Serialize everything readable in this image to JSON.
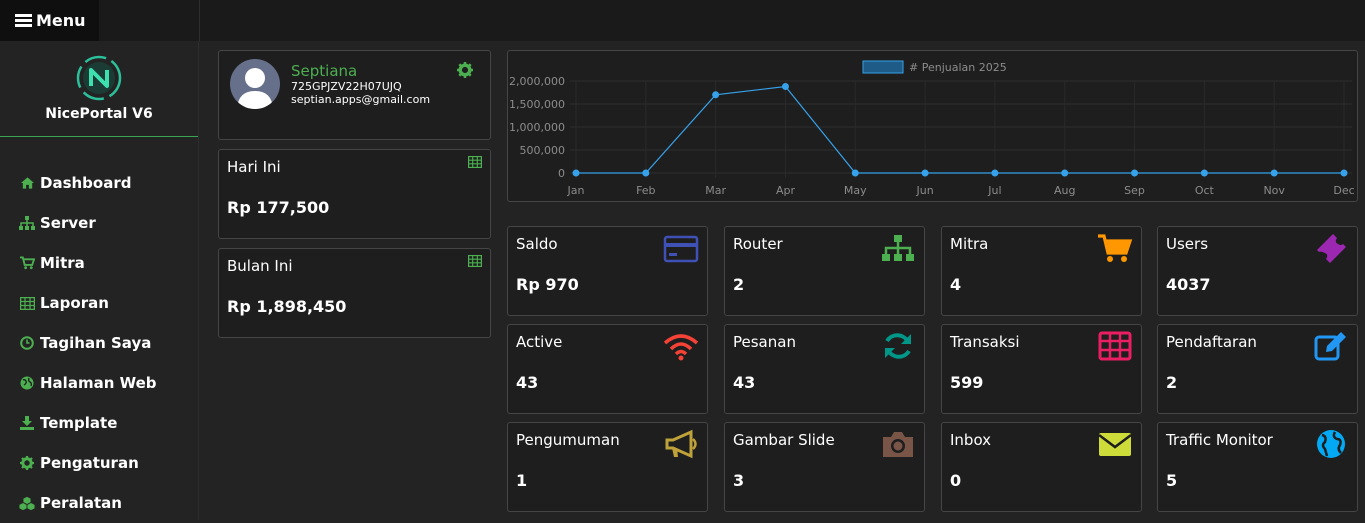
{
  "menu": {
    "label": "Menu"
  },
  "brand": {
    "name": "NicePortal V6"
  },
  "nav": {
    "items": [
      {
        "label": "Dashboard",
        "icon": "home-icon"
      },
      {
        "label": "Server",
        "icon": "sitemap-icon"
      },
      {
        "label": "Mitra",
        "icon": "cart-icon"
      },
      {
        "label": "Laporan",
        "icon": "table-icon"
      },
      {
        "label": "Tagihan Saya",
        "icon": "clock-icon"
      },
      {
        "label": "Halaman Web",
        "icon": "globe-icon"
      },
      {
        "label": "Template",
        "icon": "download-icon"
      },
      {
        "label": "Pengaturan",
        "icon": "gear-icon"
      },
      {
        "label": "Peralatan",
        "icon": "cubes-icon"
      }
    ]
  },
  "profile": {
    "name": "Septiana",
    "code": "725GPJZV22H07UJQ",
    "email": "septian.apps@gmail.com"
  },
  "today": {
    "title": "Hari Ini",
    "value": "Rp 177,500"
  },
  "month": {
    "title": "Bulan Ini",
    "value": "Rp 1,898,450"
  },
  "chart_data": {
    "type": "line",
    "series": [
      {
        "name": "# Penjualan 2025",
        "values": [
          0,
          0,
          1700000,
          1880000,
          0,
          0,
          0,
          0,
          0,
          0,
          0,
          0
        ]
      }
    ],
    "categories": [
      "Jan",
      "Feb",
      "Mar",
      "Apr",
      "May",
      "Jun",
      "Jul",
      "Aug",
      "Sep",
      "Oct",
      "Nov",
      "Dec"
    ],
    "ylim": [
      0,
      2000000
    ],
    "yticks": [
      "2,000,000",
      "1,500,000",
      "1,000,000",
      "500,000",
      "0"
    ],
    "legend": "top-center",
    "color": "#36a2eb"
  },
  "tiles": [
    {
      "title": "Saldo",
      "value": "Rp 970",
      "icon": "credit-card-icon",
      "color": "#3f51b5"
    },
    {
      "title": "Router",
      "value": "2",
      "icon": "sitemap-icon",
      "color": "#4caf50"
    },
    {
      "title": "Mitra",
      "value": "4",
      "icon": "cart-icon",
      "color": "#ff9800"
    },
    {
      "title": "Users",
      "value": "4037",
      "icon": "ticket-icon",
      "color": "#9c27b0"
    },
    {
      "title": "Active",
      "value": "43",
      "icon": "wifi-icon",
      "color": "#f44336"
    },
    {
      "title": "Pesanan",
      "value": "43",
      "icon": "refresh-icon",
      "color": "#009688"
    },
    {
      "title": "Transaksi",
      "value": "599",
      "icon": "table-icon",
      "color": "#e91e63"
    },
    {
      "title": "Pendaftaran",
      "value": "2",
      "icon": "edit-icon",
      "color": "#2196f3"
    },
    {
      "title": "Pengumuman",
      "value": "1",
      "icon": "bullhorn-icon",
      "color": "#bfa23a"
    },
    {
      "title": "Gambar Slide",
      "value": "3",
      "icon": "camera-icon",
      "color": "#795548"
    },
    {
      "title": "Inbox",
      "value": "0",
      "icon": "envelope-icon",
      "color": "#cddc39"
    },
    {
      "title": "Traffic Monitor",
      "value": "5",
      "icon": "globe-icon",
      "color": "#03a9f4"
    }
  ]
}
